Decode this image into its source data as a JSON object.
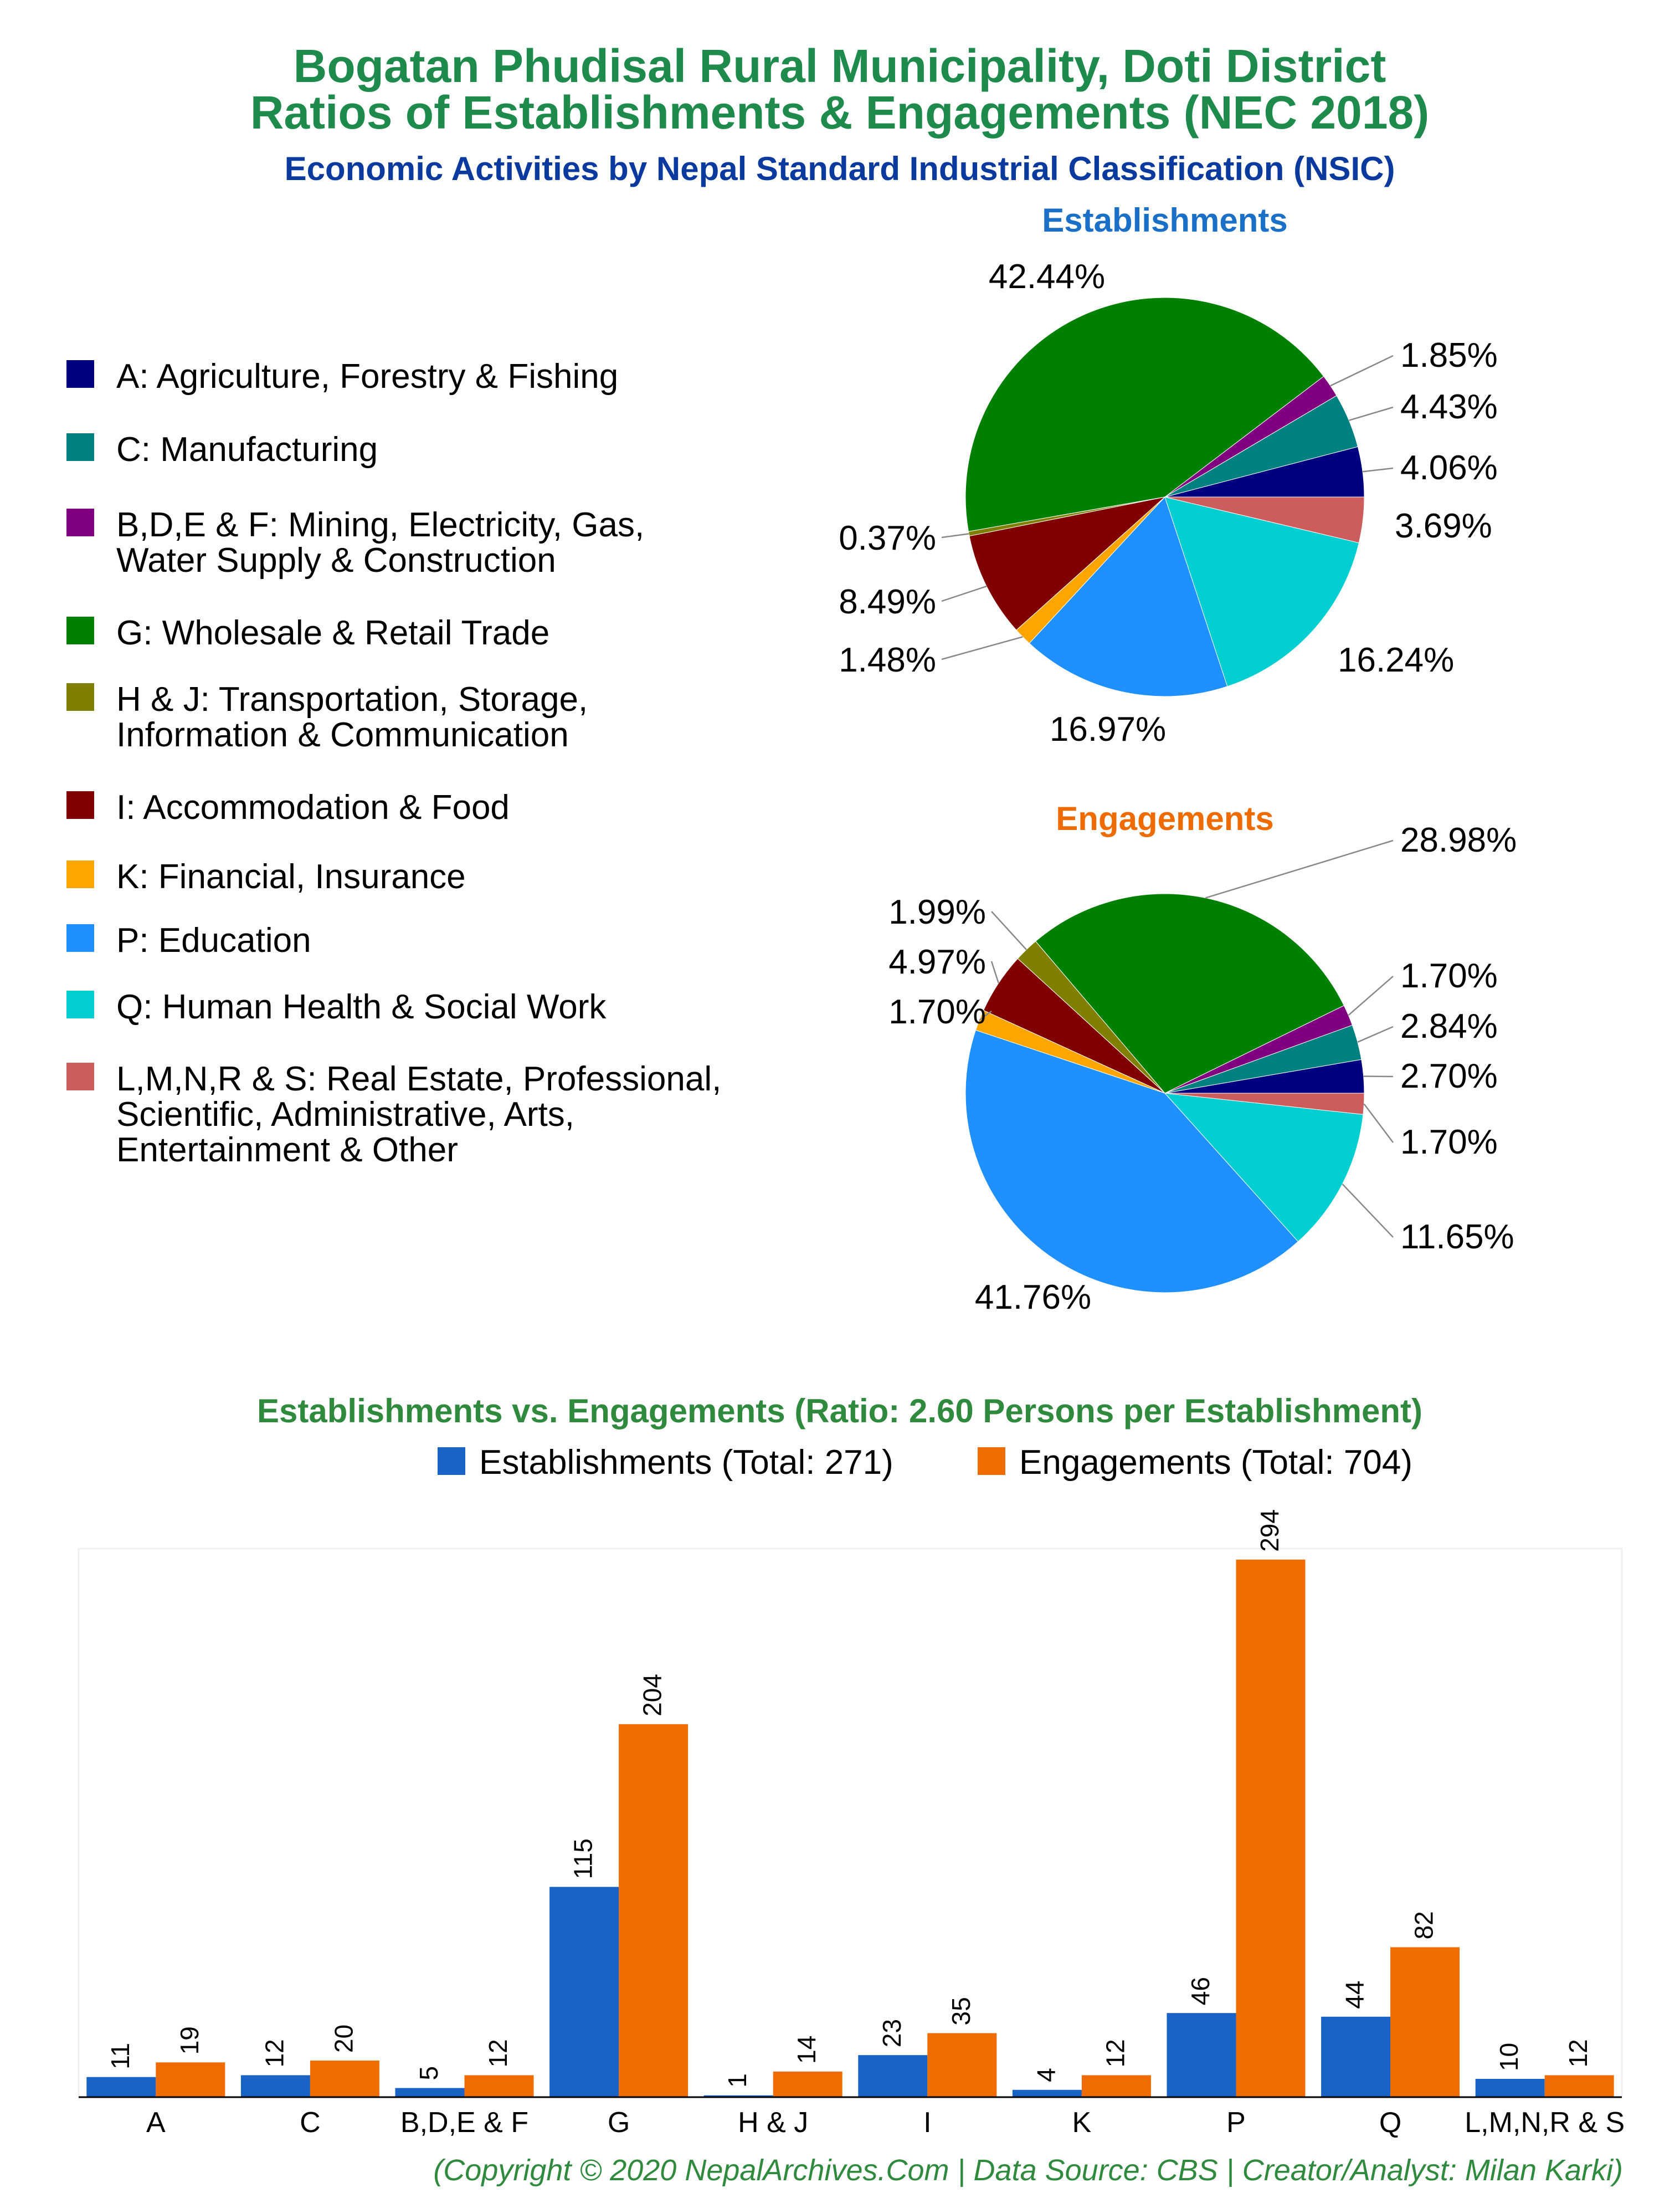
{
  "title_line1": "Bogatan Phudisal Rural Municipality, Doti District",
  "title_line2": "Ratios of Establishments & Engagements (NEC 2018)",
  "subtitle": "Economic Activities by Nepal Standard Industrial Classification (NSIC)",
  "legend": [
    {
      "lines": [
        "A: Agriculture, Forestry & Fishing"
      ],
      "color": "#000080"
    },
    {
      "lines": [
        "C: Manufacturing"
      ],
      "color": "#008080"
    },
    {
      "lines": [
        "B,D,E & F: Mining, Electricity, Gas,",
        "Water Supply & Construction"
      ],
      "color": "#800080"
    },
    {
      "lines": [
        "G: Wholesale & Retail Trade"
      ],
      "color": "#008000"
    },
    {
      "lines": [
        "H & J: Transportation, Storage,",
        "Information & Communication"
      ],
      "color": "#808000"
    },
    {
      "lines": [
        "I: Accommodation & Food"
      ],
      "color": "#800000"
    },
    {
      "lines": [
        "K: Financial, Insurance"
      ],
      "color": "#ffa500"
    },
    {
      "lines": [
        "P: Education"
      ],
      "color": "#1e90ff"
    },
    {
      "lines": [
        "Q: Human Health & Social Work"
      ],
      "color": "#00ced1"
    },
    {
      "lines": [
        "L,M,N,R & S: Real Estate, Professional,",
        "Scientific, Administrative, Arts,",
        "Entertainment & Other"
      ],
      "color": "#cd5c5c"
    }
  ],
  "chart_data": [
    {
      "type": "pie",
      "title": "Establishments",
      "labels": [
        "A",
        "C",
        "B,D,E & F",
        "G",
        "H & J",
        "I",
        "K",
        "P",
        "Q",
        "L,M,N,R & S"
      ],
      "values": [
        4.06,
        4.43,
        1.85,
        42.44,
        0.37,
        8.49,
        1.48,
        16.97,
        16.24,
        3.69
      ],
      "value_labels": [
        "4.06%",
        "4.43%",
        "1.85%",
        "42.44%",
        "0.37%",
        "8.49%",
        "1.48%",
        "16.97%",
        "16.24%",
        "3.69%"
      ]
    },
    {
      "type": "pie",
      "title": "Engagements",
      "labels": [
        "A",
        "C",
        "B,D,E & F",
        "G",
        "H & J",
        "I",
        "K",
        "P",
        "Q",
        "L,M,N,R & S"
      ],
      "values": [
        2.7,
        2.84,
        1.7,
        28.98,
        1.99,
        4.97,
        1.7,
        41.76,
        11.65,
        1.7
      ],
      "value_labels": [
        "2.70%",
        "2.84%",
        "1.70%",
        "28.98%",
        "1.99%",
        "4.97%",
        "1.70%",
        "41.76%",
        "11.65%",
        "1.70%"
      ]
    },
    {
      "type": "bar",
      "title": "Establishments vs. Engagements (Ratio: 2.60 Persons per Establishment)",
      "categories": [
        "A",
        "C",
        "B,D,E & F",
        "G",
        "H & J",
        "I",
        "K",
        "P",
        "Q",
        "L,M,N,R & S"
      ],
      "series": [
        {
          "name": "Establishments (Total: 271)",
          "color": "#1a63c6",
          "values": [
            11,
            12,
            5,
            115,
            1,
            23,
            4,
            46,
            44,
            10
          ]
        },
        {
          "name": "Engagements (Total: 704)",
          "color": "#ef6c00",
          "values": [
            19,
            20,
            12,
            204,
            14,
            35,
            12,
            294,
            82,
            12
          ]
        }
      ],
      "ylim": [
        0,
        300
      ],
      "grid": false
    }
  ],
  "footer": "(Copyright © 2020 NepalArchives.Com | Data Source: CBS | Creator/Analyst: Milan Karki)"
}
